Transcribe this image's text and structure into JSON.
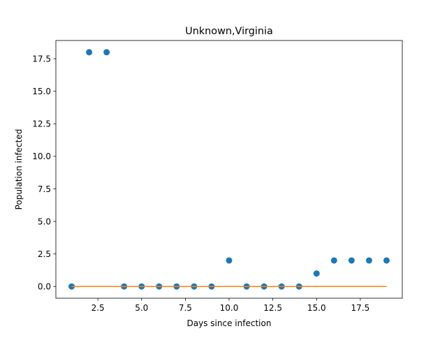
{
  "chart_data": {
    "type": "scatter",
    "title": "Unknown,Virginia",
    "xlabel": "Days since infection",
    "ylabel": "Population infected",
    "xlim": [
      0.1,
      19.9
    ],
    "ylim": [
      -0.9,
      18.9
    ],
    "xticks": [
      2.5,
      5.0,
      7.5,
      10.0,
      12.5,
      15.0,
      17.5
    ],
    "xtick_labels": [
      "2.5",
      "5.0",
      "7.5",
      "10.0",
      "12.5",
      "15.0",
      "17.5"
    ],
    "yticks": [
      0.0,
      2.5,
      5.0,
      7.5,
      10.0,
      12.5,
      15.0,
      17.5
    ],
    "ytick_labels": [
      "0.0",
      "2.5",
      "5.0",
      "7.5",
      "10.0",
      "12.5",
      "15.0",
      "17.5"
    ],
    "grid": false,
    "series": [
      {
        "kind": "scatter",
        "color": "#1f77b4",
        "x": [
          1,
          2,
          3,
          4,
          5,
          6,
          7,
          8,
          9,
          10,
          11,
          12,
          13,
          14,
          15,
          16,
          17,
          18,
          19
        ],
        "y": [
          0,
          18,
          18,
          0,
          0,
          0,
          0,
          0,
          0,
          2,
          0,
          0,
          0,
          0,
          1,
          2,
          2,
          2,
          2
        ]
      },
      {
        "kind": "line",
        "color": "#ff7f0e",
        "x": [
          1,
          19
        ],
        "y": [
          0,
          0
        ]
      }
    ]
  }
}
